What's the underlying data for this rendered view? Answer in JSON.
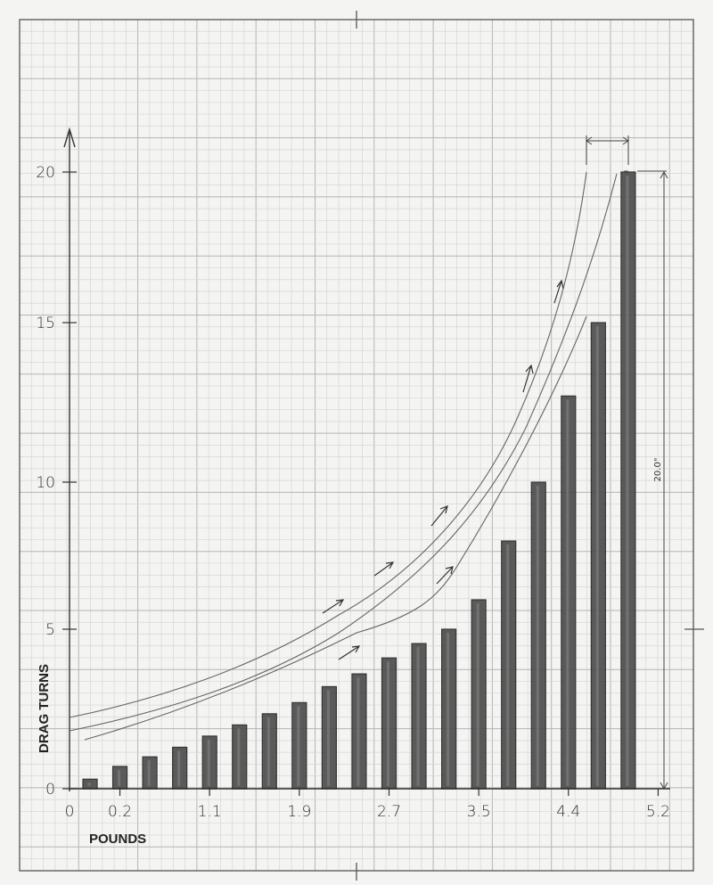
{
  "chart_data": {
    "type": "bar",
    "title": "",
    "xlabel": "POUNDS",
    "ylabel": "DRAG TURNS",
    "ylim": [
      0,
      20
    ],
    "yticks": [
      "0",
      "5",
      "10",
      "15",
      "20"
    ],
    "xticks": [
      "0",
      "0.2",
      "1.1",
      "1.9",
      "2.7",
      "3.5",
      "4.4",
      "5.2"
    ],
    "values": [
      0.3,
      0.7,
      1.0,
      1.3,
      1.65,
      2.0,
      2.35,
      2.7,
      3.2,
      3.6,
      4.1,
      4.55,
      5.0,
      6.0,
      8.0,
      10.0,
      12.7,
      15.0,
      20.0
    ],
    "dimension_label": "20.0\"",
    "trend_curves": 3,
    "grid": true,
    "style": "hand-drawn pencil on graph paper",
    "colors": {
      "bar": "#4a4a4a",
      "grid": "#c9c9c9",
      "paper": "#f4f4f2",
      "ink": "#333333"
    }
  }
}
